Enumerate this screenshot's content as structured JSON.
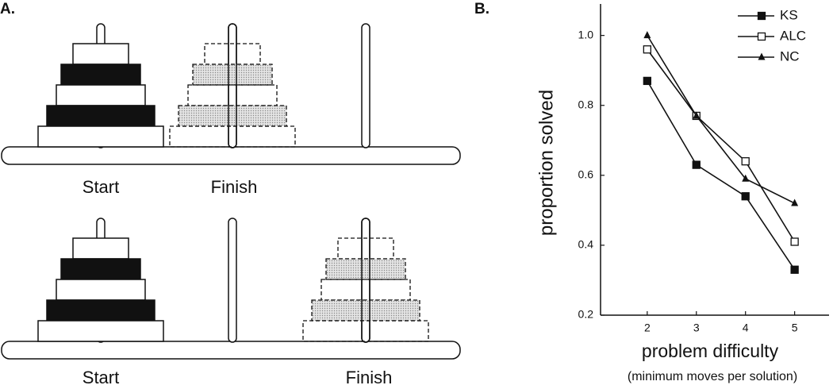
{
  "panel_a": {
    "label": "A.",
    "diagrams": [
      {
        "start": "Start",
        "finish": "Finish"
      },
      {
        "start": "Start",
        "finish": "Finish"
      }
    ]
  },
  "chart_data": {
    "type": "line",
    "panel_label": "B.",
    "x_label": "problem difficulty",
    "x_sublabel": "(minimum moves per solution)",
    "y_label": "proportion solved",
    "x": [
      2,
      3,
      4,
      5
    ],
    "xlim": [
      1.05,
      5.7
    ],
    "xticks": [
      2,
      3,
      4,
      5
    ],
    "ylim": [
      0.2,
      1.09
    ],
    "yticks": [
      0.2,
      0.4,
      0.6,
      0.8,
      {
        "value": 1,
        "label": "1.0"
      }
    ],
    "legend": "top-right",
    "series": [
      {
        "name": "KS",
        "color": "#111111",
        "marker": "square-filled",
        "values": [
          0.87,
          0.63,
          0.54,
          0.33
        ]
      },
      {
        "name": "ALC",
        "color": "#111111",
        "marker": "square-open",
        "values": [
          0.96,
          0.77,
          0.64,
          0.41
        ]
      },
      {
        "name": "NC",
        "color": "#111111",
        "marker": "triangle-filled",
        "values": [
          1.0,
          0.77,
          0.59,
          0.52
        ]
      }
    ]
  }
}
